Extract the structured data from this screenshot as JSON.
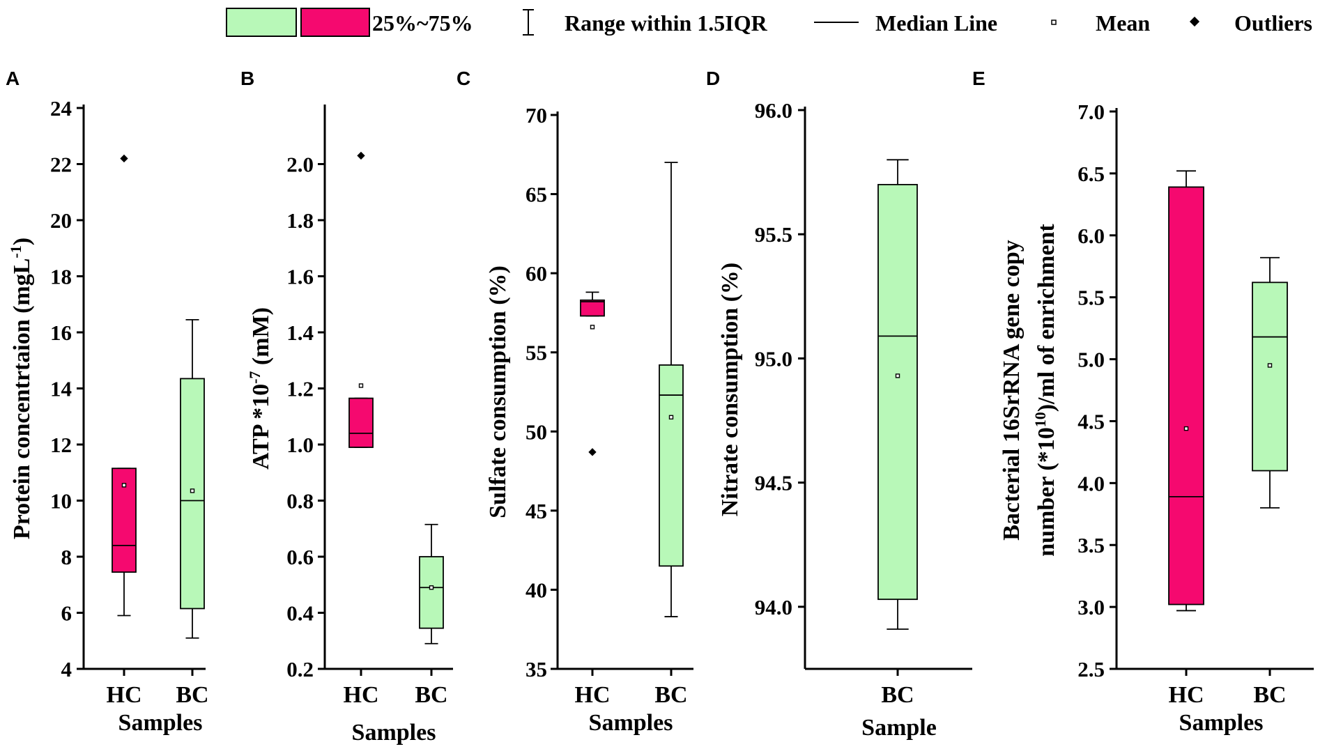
{
  "colors": {
    "HC": "#f5096f",
    "BC": "#b8f8b8",
    "stroke": "#000000"
  },
  "legend": {
    "iqr_label": "25%~75%",
    "range_label": "Range within 1.5IQR",
    "median_label": "Median Line",
    "mean_label": "Mean",
    "outliers_label": "Outliers"
  },
  "chart_data": [
    {
      "panel": "A",
      "type": "box",
      "title": "",
      "ylabel_main": "Protein concentrtaion (mgL",
      "ylabel_sup": "-1",
      "ylabel_tail": ")",
      "xlabel": "Samples",
      "ylim": [
        4,
        24
      ],
      "ticks": [
        4,
        6,
        8,
        10,
        12,
        14,
        16,
        18,
        20,
        22,
        24
      ],
      "tick_labels": [
        "4",
        "6",
        "8",
        "10",
        "12",
        "14",
        "16",
        "18",
        "20",
        "22",
        "24"
      ],
      "categories": [
        "HC",
        "BC"
      ],
      "boxes": [
        {
          "group": "HC",
          "min": 5.9,
          "q1": 7.45,
          "median": 8.4,
          "q3": 11.15,
          "max": 11.15,
          "mean": 10.55,
          "outliers": [
            22.2
          ]
        },
        {
          "group": "BC",
          "min": 5.1,
          "q1": 6.15,
          "median": 10.0,
          "q3": 14.35,
          "max": 16.45,
          "mean": 10.35,
          "outliers": []
        }
      ]
    },
    {
      "panel": "B",
      "type": "box",
      "title": "",
      "ylabel_main": "ATP *10",
      "ylabel_sup": "-7",
      "ylabel_tail": " (mM)",
      "xlabel": "Samples",
      "ylim": [
        0.2,
        2.2
      ],
      "ticks": [
        0.2,
        0.4,
        0.6,
        0.8,
        1.0,
        1.2,
        1.4,
        1.6,
        1.8,
        2.0
      ],
      "tick_labels": [
        "0.2",
        "0.4",
        "0.6",
        "0.8",
        "1.0",
        "1.2",
        "1.4",
        "1.6",
        "1.8",
        "2.0"
      ],
      "categories": [
        "HC",
        "BC"
      ],
      "boxes": [
        {
          "group": "HC",
          "min": 0.99,
          "q1": 0.99,
          "median": 1.04,
          "q3": 1.165,
          "max": 1.165,
          "mean": 1.21,
          "outliers": [
            2.03
          ]
        },
        {
          "group": "BC",
          "min": 0.29,
          "q1": 0.345,
          "median": 0.49,
          "q3": 0.6,
          "max": 0.715,
          "mean": 0.49,
          "outliers": []
        }
      ]
    },
    {
      "panel": "C",
      "type": "box",
      "title": "",
      "ylabel_main": "Sulfate consumption (%)",
      "ylabel_sup": "",
      "ylabel_tail": "",
      "xlabel": "Samples",
      "ylim": [
        35,
        70
      ],
      "ticks": [
        35,
        40,
        45,
        50,
        55,
        60,
        65,
        70
      ],
      "tick_labels": [
        "35",
        "40",
        "45",
        "50",
        "55",
        "60",
        "65",
        "70"
      ],
      "categories": [
        "HC",
        "BC"
      ],
      "boxes": [
        {
          "group": "HC",
          "min": 57.3,
          "q1": 57.3,
          "median": 58.2,
          "q3": 58.3,
          "max": 58.8,
          "mean": 56.6,
          "outliers": [
            48.7
          ]
        },
        {
          "group": "BC",
          "min": 38.3,
          "q1": 41.5,
          "median": 52.3,
          "q3": 54.2,
          "max": 67.0,
          "mean": 50.9,
          "outliers": []
        }
      ]
    },
    {
      "panel": "D",
      "type": "box",
      "title": "",
      "ylabel_main": "Nitrate consumption (%)",
      "ylabel_sup": "",
      "ylabel_tail": "",
      "xlabel": "Sample",
      "ylim": [
        93.75,
        96.0
      ],
      "ticks": [
        94.0,
        94.5,
        95.0,
        95.5,
        96.0
      ],
      "tick_labels": [
        "94.0",
        "94.5",
        "95.0",
        "95.5",
        "96.0"
      ],
      "categories": [
        "BC"
      ],
      "boxes": [
        {
          "group": "BC",
          "min": 93.91,
          "q1": 94.03,
          "median": 95.09,
          "q3": 95.7,
          "max": 95.8,
          "mean": 94.93,
          "outliers": []
        }
      ]
    },
    {
      "panel": "E",
      "type": "box",
      "title": "",
      "ylabel_main": "Bacterial 16SrRNA gene copy",
      "ylabel2_main": "number (*10",
      "ylabel_sup": "10",
      "ylabel_tail": ")/ml of enrichment",
      "xlabel": "Samples",
      "ylim": [
        2.5,
        7.0
      ],
      "ticks": [
        2.5,
        3.0,
        3.5,
        4.0,
        4.5,
        5.0,
        5.5,
        6.0,
        6.5,
        7.0
      ],
      "tick_labels": [
        "2.5",
        "3.0",
        "3.5",
        "4.0",
        "4.5",
        "5.0",
        "5.5",
        "6.0",
        "6.5",
        "7.0"
      ],
      "categories": [
        "HC",
        "BC"
      ],
      "boxes": [
        {
          "group": "HC",
          "min": 2.97,
          "q1": 3.02,
          "median": 3.89,
          "q3": 6.39,
          "max": 6.52,
          "mean": 4.44,
          "outliers": []
        },
        {
          "group": "BC",
          "min": 3.8,
          "q1": 4.1,
          "median": 5.18,
          "q3": 5.62,
          "max": 5.82,
          "mean": 4.95,
          "outliers": []
        }
      ]
    }
  ]
}
